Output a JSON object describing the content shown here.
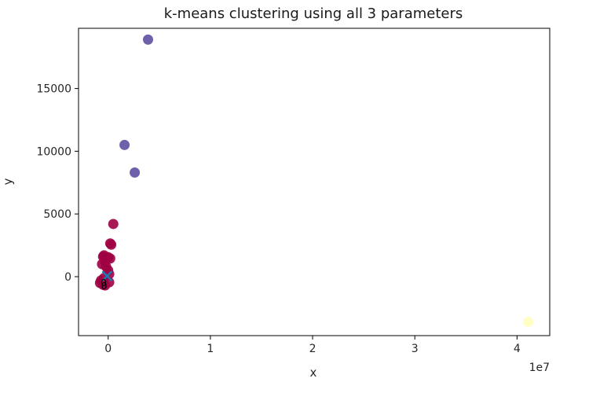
{
  "chart_data": {
    "type": "scatter",
    "title": "k-means clustering using all 3 parameters",
    "xlabel": "x",
    "ylabel": "y",
    "x_offset_label": "1e7",
    "xlim": [
      -0.29,
      4.32
    ],
    "ylim": [
      -4700,
      19800
    ],
    "x_ticks": [
      0,
      1,
      2,
      3,
      4
    ],
    "x_tick_labels": [
      "0",
      "1",
      "2",
      "3",
      "4"
    ],
    "y_ticks": [
      0,
      5000,
      10000,
      15000
    ],
    "y_tick_labels": [
      "0",
      "5000",
      "10000",
      "15000"
    ],
    "grid": false,
    "colors": {
      "cluster_0": "#9e0142",
      "cluster_1": "#5e4fa2",
      "cluster_2": "#ffffbf",
      "centroid": "#1f77b4"
    },
    "series": [
      {
        "color_key": "cluster_0",
        "x": [
          0.05,
          0.02,
          0.03,
          -0.04,
          -0.05,
          0.0,
          0.02,
          -0.03,
          -0.06,
          -0.02,
          0.0,
          0.01,
          -0.04,
          -0.07,
          -0.08,
          -0.05,
          -0.03,
          0.01
        ],
        "y": [
          4200,
          2650,
          2550,
          1700,
          1600,
          1550,
          1450,
          1200,
          1000,
          800,
          500,
          200,
          -100,
          -300,
          -500,
          -650,
          -700,
          -450
        ]
      },
      {
        "color_key": "cluster_1",
        "x": [
          0.39,
          0.16,
          0.26
        ],
        "y": [
          18900,
          10500,
          8300
        ]
      },
      {
        "color_key": "cluster_2",
        "x": [
          4.11
        ],
        "y": [
          -3600
        ]
      }
    ],
    "centroids": {
      "marker": "x",
      "color_key": "centroid",
      "x": [
        -0.01
      ],
      "y": [
        50
      ]
    },
    "annotations": [
      {
        "text": "0",
        "x": -0.045,
        "y": -500
      },
      {
        "text": "0",
        "x": -0.04,
        "y": -750
      }
    ]
  }
}
